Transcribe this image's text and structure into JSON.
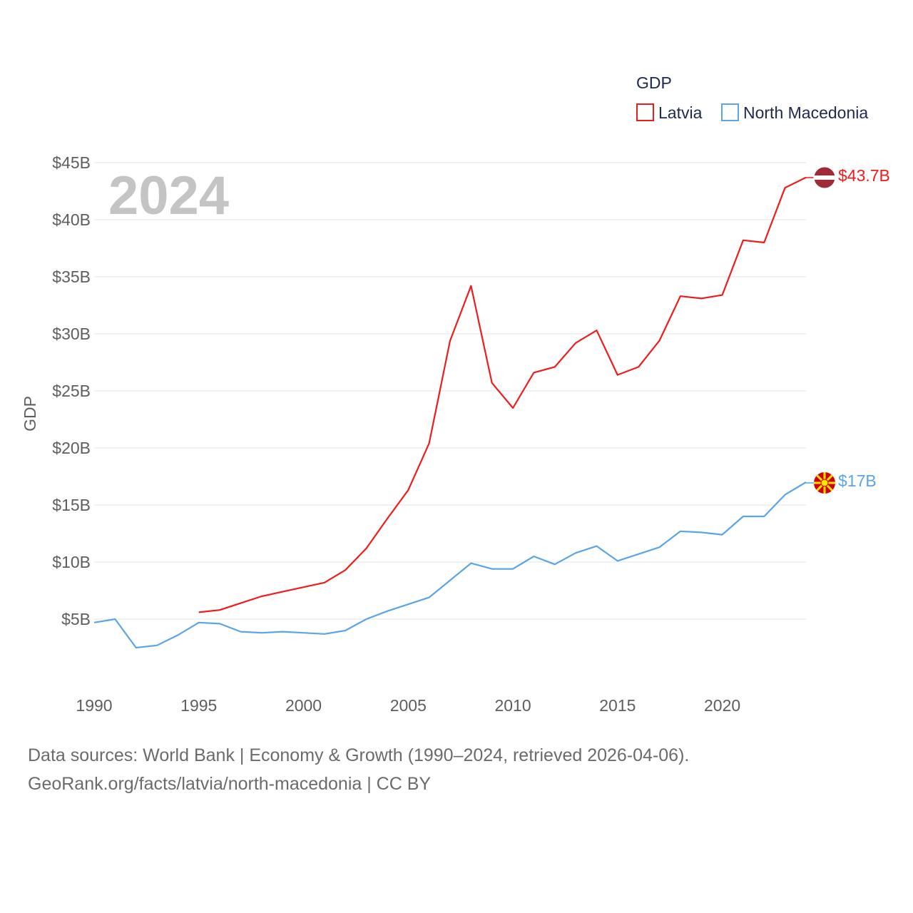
{
  "chart_data": {
    "type": "line",
    "year_label": "2024",
    "ylabel": "GDP",
    "xlabel": "",
    "legend": {
      "title": "GDP",
      "position": "top-right",
      "items": [
        "Latvia",
        "North Macedonia"
      ]
    },
    "xlim": [
      1990,
      2024
    ],
    "ylim": [
      0,
      45
    ],
    "y_ticks": [
      {
        "value": 5,
        "label": "$5B"
      },
      {
        "value": 10,
        "label": "$10B"
      },
      {
        "value": 15,
        "label": "$15B"
      },
      {
        "value": 20,
        "label": "$20B"
      },
      {
        "value": 25,
        "label": "$25B"
      },
      {
        "value": 30,
        "label": "$30B"
      },
      {
        "value": 35,
        "label": "$35B"
      },
      {
        "value": 40,
        "label": "$40B"
      },
      {
        "value": 45,
        "label": "$45B"
      }
    ],
    "x_ticks": [
      {
        "value": 1990,
        "label": "1990"
      },
      {
        "value": 1995,
        "label": "1995"
      },
      {
        "value": 2000,
        "label": "2000"
      },
      {
        "value": 2005,
        "label": "2005"
      },
      {
        "value": 2010,
        "label": "2010"
      },
      {
        "value": 2015,
        "label": "2015"
      },
      {
        "value": 2020,
        "label": "2020"
      }
    ],
    "series": [
      {
        "name": "Latvia",
        "color": "#ee1c1c",
        "end_label": "$43.7B",
        "flag": "latvia-flag",
        "x": [
          1995,
          1996,
          1997,
          1998,
          1999,
          2000,
          2001,
          2002,
          2003,
          2004,
          2005,
          2006,
          2007,
          2008,
          2009,
          2010,
          2011,
          2012,
          2013,
          2014,
          2015,
          2016,
          2017,
          2018,
          2019,
          2020,
          2021,
          2022,
          2023,
          2024
        ],
        "values": [
          5.6,
          5.8,
          6.4,
          7.0,
          7.4,
          7.8,
          8.2,
          9.3,
          11.2,
          13.8,
          16.3,
          20.4,
          29.4,
          34.2,
          25.7,
          23.5,
          26.6,
          27.1,
          29.2,
          30.3,
          26.4,
          27.1,
          29.4,
          33.3,
          33.1,
          33.4,
          38.2,
          38.0,
          42.8,
          43.7
        ]
      },
      {
        "name": "North Macedonia",
        "color": "#5ca4e6",
        "end_label": "$17B",
        "flag": "north-macedonia-flag",
        "x": [
          1990,
          1991,
          1992,
          1993,
          1994,
          1995,
          1996,
          1997,
          1998,
          1999,
          2000,
          2001,
          2002,
          2003,
          2004,
          2005,
          2006,
          2007,
          2008,
          2009,
          2010,
          2011,
          2012,
          2013,
          2014,
          2015,
          2016,
          2017,
          2018,
          2019,
          2020,
          2021,
          2022,
          2023,
          2024
        ],
        "values": [
          4.7,
          5.0,
          2.5,
          2.7,
          3.6,
          4.7,
          4.6,
          3.9,
          3.8,
          3.9,
          3.8,
          3.7,
          4.0,
          5.0,
          5.7,
          6.3,
          6.9,
          8.4,
          9.9,
          9.4,
          9.4,
          10.5,
          9.8,
          10.8,
          11.4,
          10.1,
          10.7,
          11.3,
          12.7,
          12.6,
          12.4,
          14.0,
          14.0,
          15.9,
          17.0
        ]
      }
    ]
  },
  "source": {
    "line1": "Data sources: World Bank | Economy & Growth (1990–2024, retrieved 2026-04-06).",
    "line2": "GeoRank.org/facts/latvia/north-macedonia | CC BY"
  }
}
